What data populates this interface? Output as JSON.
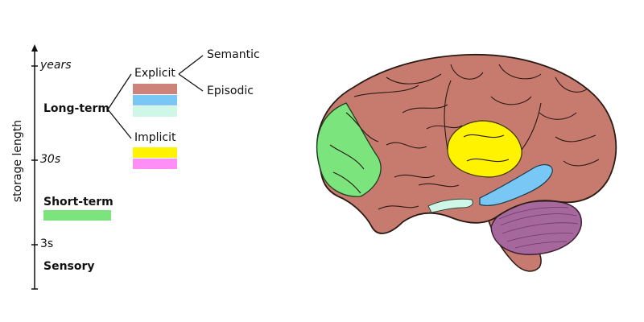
{
  "axis": {
    "label": "storage length",
    "ticks": [
      "years",
      "30s",
      "3s"
    ]
  },
  "categories": {
    "long_term": "Long-term",
    "short_term": "Short-term",
    "sensory": "Sensory"
  },
  "memory_types": {
    "explicit": "Explicit",
    "implicit": "Implicit",
    "semantic": "Semantic",
    "episodic": "Episodic"
  },
  "colors": {
    "explicit_1": "#cd8379",
    "explicit_2": "#78c7f5",
    "explicit_3": "#cff7e8",
    "implicit_1": "#fff300",
    "implicit_2": "#ff8ff7",
    "short_term": "#7ce47d",
    "brain_cortex": "#c77b6f",
    "brain_cerebellum": "#a5679c",
    "brain_brainstem": "#c67a70"
  },
  "brain_icon": "brain-illustration"
}
